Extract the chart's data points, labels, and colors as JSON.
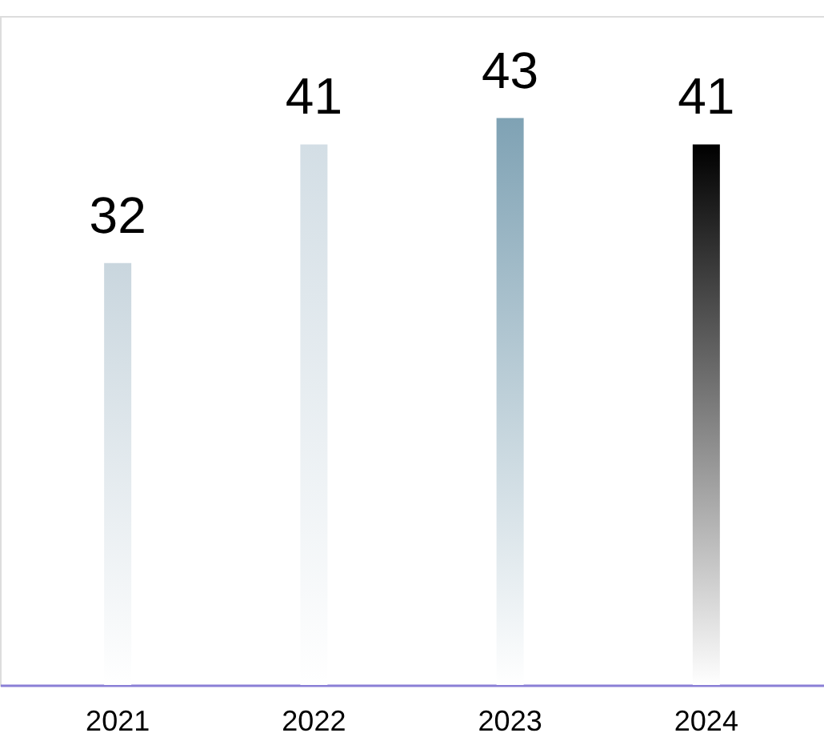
{
  "chart_data": {
    "type": "bar",
    "categories": [
      "2021",
      "2022",
      "2023",
      "2024"
    ],
    "values": [
      32,
      41,
      43,
      41
    ],
    "colors": [
      "#c9d6de",
      "#d3dee5",
      "#7fa2b4",
      "#000000"
    ],
    "data_labels": true,
    "grid": false
  }
}
